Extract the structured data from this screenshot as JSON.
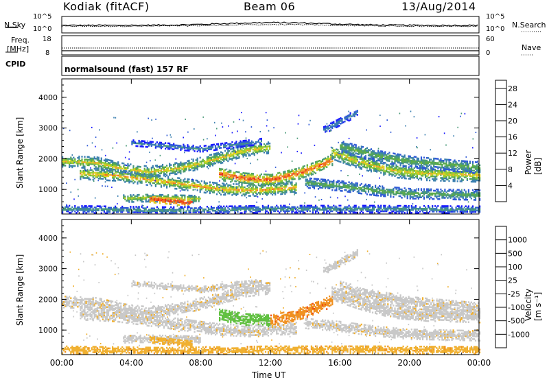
{
  "header": {
    "station": "Kodiak (fitACF)",
    "beam": "Beam 06",
    "date": "13/Aug/2014"
  },
  "strip": {
    "nsky_label": "N.Sky",
    "nsky_ticks": [
      "10^5",
      "10^0"
    ],
    "nsearch_label": "N.Search",
    "nsearch_ticks": [
      "10^5",
      "10^0"
    ],
    "freq_label_line1": "Freq.",
    "freq_label_line2": "[MHz]",
    "freq_ticks": [
      "18",
      "8"
    ],
    "nave_label": "Nave",
    "nave_ticks": [
      "60",
      "0"
    ],
    "cpid_label": "CPID",
    "cpid_text": "normalsound (fast) 157 RF"
  },
  "colors": {
    "power": [
      "#1a1aff",
      "#2f5ad6",
      "#3b7fb0",
      "#4a9a78",
      "#5aaa4a",
      "#9acd32",
      "#e0d020",
      "#f2a030",
      "#f07020",
      "#e83020",
      "#e00000"
    ],
    "velocity": [
      "#2040c0",
      "#3070b0",
      "#30a070",
      "#60c040",
      "#c8c8c8",
      "#f0b030",
      "#f09020",
      "#f05010",
      "#e00000"
    ]
  },
  "chart_data": [
    {
      "type": "heatmap",
      "name": "power",
      "x_ticks": [
        "00:00",
        "04:00",
        "08:00",
        "12:00",
        "16:00",
        "20:00",
        "00:00"
      ],
      "xlim_hours": [
        0,
        24
      ],
      "ylabel": "Slant Range [km]",
      "y_ticks": [
        1000,
        2000,
        3000,
        4000
      ],
      "ylim": [
        200,
        4600
      ],
      "colorbar_label": "Power [dB]",
      "colorbar_ticks": [
        4,
        8,
        12,
        16,
        20,
        24,
        28
      ],
      "colorbar_range": [
        0,
        30
      ]
    },
    {
      "type": "heatmap",
      "name": "velocity",
      "x_ticks": [
        "00:00",
        "04:00",
        "08:00",
        "12:00",
        "16:00",
        "20:00",
        "00:00"
      ],
      "xlim_hours": [
        0,
        24
      ],
      "xlabel": "Time UT",
      "ylabel": "Slant Range [km]",
      "y_ticks": [
        1000,
        2000,
        3000,
        4000
      ],
      "ylim": [
        200,
        4600
      ],
      "colorbar_label": "Velocity [m s⁻¹]",
      "colorbar_ticks": [
        1000,
        500,
        100,
        25,
        -25,
        -100,
        -500,
        -1000
      ]
    }
  ]
}
